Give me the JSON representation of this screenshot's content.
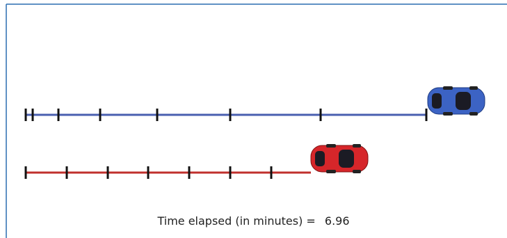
{
  "readout": {
    "label": "Time elapsed (in minutes) =",
    "value": "6.96"
  }
}
